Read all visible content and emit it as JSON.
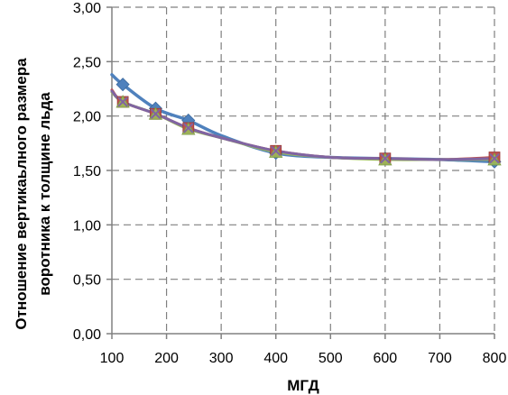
{
  "chart_data": {
    "type": "line",
    "xlabel": "МГД",
    "ylabel_lines": [
      "Отношение вертикаьлного размера",
      "воротника к толщине льда"
    ],
    "xlim": [
      100,
      800
    ],
    "ylim": [
      0,
      3
    ],
    "x_ticks": [
      "100",
      "200",
      "300",
      "400",
      "500",
      "600",
      "700",
      "800"
    ],
    "y_ticks": [
      "0,00",
      "0,50",
      "1,00",
      "1,50",
      "2,00",
      "2,50",
      "3,00"
    ],
    "grid": true,
    "series": [
      {
        "color": "#4f81bd",
        "marker": "diamond",
        "x": [
          120,
          180,
          240,
          400,
          600,
          800
        ],
        "y": [
          2.29,
          2.07,
          1.96,
          1.66,
          1.61,
          1.58
        ],
        "curve": [
          [
            100,
            2.38
          ],
          [
            120,
            2.29
          ],
          [
            180,
            2.07
          ],
          [
            240,
            1.96
          ],
          [
            300,
            1.82
          ],
          [
            400,
            1.66
          ],
          [
            500,
            1.62
          ],
          [
            600,
            1.61
          ],
          [
            700,
            1.6
          ],
          [
            800,
            1.58
          ]
        ]
      },
      {
        "color": "#c0504d",
        "marker": "square",
        "x": [
          120,
          180,
          240,
          400,
          600,
          800
        ],
        "y": [
          2.13,
          2.02,
          1.89,
          1.68,
          1.61,
          1.62
        ],
        "curve": [
          [
            100,
            2.24
          ],
          [
            120,
            2.13
          ],
          [
            180,
            2.02
          ],
          [
            240,
            1.89
          ],
          [
            300,
            1.8
          ],
          [
            400,
            1.68
          ],
          [
            500,
            1.62
          ],
          [
            600,
            1.61
          ],
          [
            700,
            1.6
          ],
          [
            800,
            1.62
          ]
        ]
      },
      {
        "color": "#9bbb59",
        "marker": "triangle",
        "x": [
          120,
          180,
          240,
          400,
          600,
          800
        ],
        "y": [
          2.13,
          2.02,
          1.88,
          1.67,
          1.6,
          1.6
        ],
        "curve": [
          [
            100,
            2.22
          ],
          [
            120,
            2.13
          ],
          [
            180,
            2.02
          ],
          [
            240,
            1.88
          ],
          [
            300,
            1.8
          ],
          [
            400,
            1.67
          ],
          [
            500,
            1.62
          ],
          [
            600,
            1.6
          ],
          [
            700,
            1.6
          ],
          [
            800,
            1.6
          ]
        ]
      },
      {
        "color": "#8064a2",
        "marker": "x",
        "x": [
          120,
          180,
          240,
          400,
          600,
          800
        ],
        "y": [
          2.13,
          2.02,
          1.89,
          1.68,
          1.61,
          1.61
        ],
        "curve": [
          [
            100,
            2.23
          ],
          [
            120,
            2.13
          ],
          [
            180,
            2.02
          ],
          [
            240,
            1.89
          ],
          [
            300,
            1.8
          ],
          [
            400,
            1.68
          ],
          [
            500,
            1.62
          ],
          [
            600,
            1.61
          ],
          [
            700,
            1.6
          ],
          [
            800,
            1.61
          ]
        ]
      }
    ]
  }
}
